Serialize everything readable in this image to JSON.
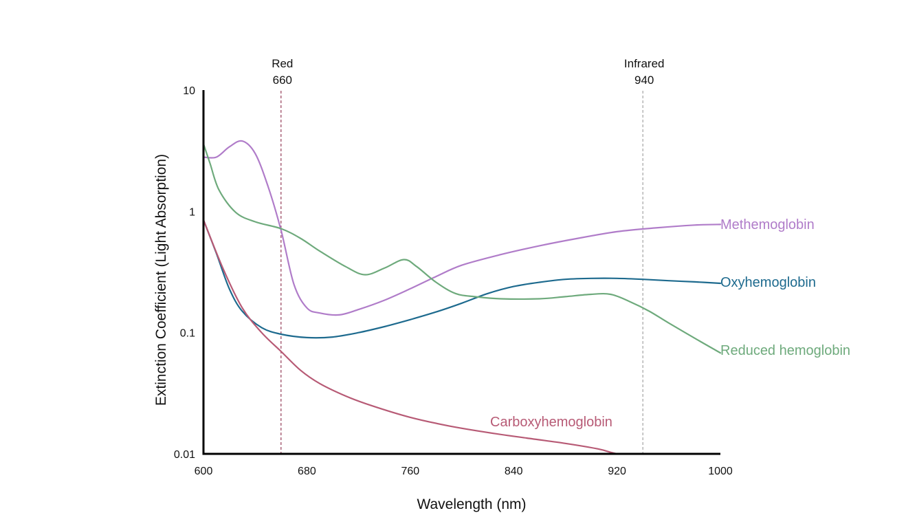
{
  "chart_data": {
    "type": "line",
    "title": "",
    "xlabel": "Wavelength (nm)",
    "ylabel": "Extinction Coefficient (Light Absorption)",
    "y_scale": "log",
    "xlim": [
      600,
      1000
    ],
    "ylim": [
      0.01,
      10
    ],
    "x_ticks": [
      "600",
      "680",
      "760",
      "840",
      "920",
      "1000"
    ],
    "y_ticks": [
      "10",
      "1",
      "0.1",
      "0.01"
    ],
    "grid": false,
    "legend": "inline labels at line ends",
    "annotations": [
      {
        "label": "Red",
        "value_label": "660",
        "x": 660,
        "color": "#9b4a63"
      },
      {
        "label": "Infrared",
        "value_label": "940",
        "x": 940,
        "color": "#aaaaaa"
      }
    ],
    "series": [
      {
        "name": "Methemoglobin",
        "color": "#b07cc9",
        "points": [
          [
            600,
            2.8
          ],
          [
            610,
            2.8
          ],
          [
            620,
            3.4
          ],
          [
            630,
            3.8
          ],
          [
            640,
            3.0
          ],
          [
            650,
            1.6
          ],
          [
            660,
            0.7
          ],
          [
            670,
            0.25
          ],
          [
            680,
            0.16
          ],
          [
            690,
            0.145
          ],
          [
            705,
            0.14
          ],
          [
            720,
            0.155
          ],
          [
            740,
            0.185
          ],
          [
            760,
            0.23
          ],
          [
            780,
            0.29
          ],
          [
            800,
            0.36
          ],
          [
            830,
            0.44
          ],
          [
            860,
            0.52
          ],
          [
            890,
            0.6
          ],
          [
            920,
            0.68
          ],
          [
            950,
            0.73
          ],
          [
            980,
            0.77
          ],
          [
            1000,
            0.78
          ]
        ]
      },
      {
        "name": "Oxyhemoglobin",
        "color": "#1d6a8e",
        "points": [
          [
            600,
            0.85
          ],
          [
            610,
            0.45
          ],
          [
            620,
            0.23
          ],
          [
            630,
            0.15
          ],
          [
            645,
            0.11
          ],
          [
            660,
            0.097
          ],
          [
            680,
            0.091
          ],
          [
            700,
            0.092
          ],
          [
            720,
            0.1
          ],
          [
            740,
            0.112
          ],
          [
            760,
            0.128
          ],
          [
            780,
            0.148
          ],
          [
            800,
            0.175
          ],
          [
            820,
            0.21
          ],
          [
            840,
            0.24
          ],
          [
            860,
            0.26
          ],
          [
            880,
            0.275
          ],
          [
            900,
            0.28
          ],
          [
            920,
            0.28
          ],
          [
            940,
            0.275
          ],
          [
            960,
            0.268
          ],
          [
            980,
            0.262
          ],
          [
            1000,
            0.255
          ]
        ]
      },
      {
        "name": "Reduced hemoglobin",
        "color": "#6eaa7c",
        "points": [
          [
            600,
            3.6
          ],
          [
            605,
            2.5
          ],
          [
            612,
            1.5
          ],
          [
            625,
            0.98
          ],
          [
            640,
            0.82
          ],
          [
            660,
            0.72
          ],
          [
            675,
            0.6
          ],
          [
            690,
            0.47
          ],
          [
            710,
            0.35
          ],
          [
            725,
            0.3
          ],
          [
            740,
            0.34
          ],
          [
            755,
            0.4
          ],
          [
            765,
            0.35
          ],
          [
            780,
            0.26
          ],
          [
            795,
            0.21
          ],
          [
            810,
            0.198
          ],
          [
            830,
            0.19
          ],
          [
            860,
            0.19
          ],
          [
            880,
            0.198
          ],
          [
            900,
            0.207
          ],
          [
            915,
            0.207
          ],
          [
            930,
            0.18
          ],
          [
            945,
            0.15
          ],
          [
            960,
            0.12
          ],
          [
            980,
            0.09
          ],
          [
            1000,
            0.068
          ]
        ]
      },
      {
        "name": "Carboxyhemoglobin",
        "color": "#b75a75",
        "points": [
          [
            600,
            0.85
          ],
          [
            615,
            0.34
          ],
          [
            630,
            0.16
          ],
          [
            645,
            0.1
          ],
          [
            660,
            0.07
          ],
          [
            675,
            0.049
          ],
          [
            690,
            0.038
          ],
          [
            710,
            0.03
          ],
          [
            730,
            0.025
          ],
          [
            760,
            0.02
          ],
          [
            790,
            0.017
          ],
          [
            820,
            0.015
          ],
          [
            850,
            0.0135
          ],
          [
            880,
            0.0122
          ],
          [
            905,
            0.011
          ],
          [
            915,
            0.0103
          ],
          [
            920,
            0.01
          ]
        ]
      }
    ]
  }
}
